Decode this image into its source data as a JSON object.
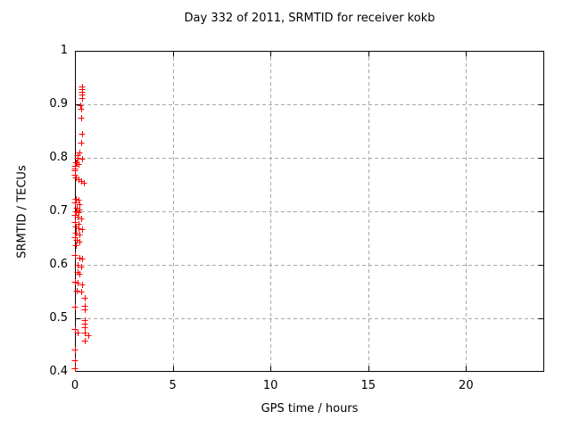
{
  "chart_data": {
    "type": "scatter",
    "title": "Day 332 of 2011, SRMTID for receiver kokb",
    "xlabel": "GPS time / hours",
    "ylabel": "SRMTID / TECUs",
    "xlim": [
      0,
      24
    ],
    "ylim": [
      0.4,
      1.0
    ],
    "xticks": [
      {
        "v": 0,
        "label": "0"
      },
      {
        "v": 5,
        "label": "5"
      },
      {
        "v": 10,
        "label": "10"
      },
      {
        "v": 15,
        "label": "15"
      },
      {
        "v": 20,
        "label": "20"
      }
    ],
    "yticks": [
      {
        "v": 0.4,
        "label": "0.4"
      },
      {
        "v": 0.5,
        "label": "0.5"
      },
      {
        "v": 0.6,
        "label": "0.6"
      },
      {
        "v": 0.7,
        "label": "0.7"
      },
      {
        "v": 0.8,
        "label": "0.8"
      },
      {
        "v": 0.9,
        "label": "0.9"
      },
      {
        "v": 1,
        "label": "1"
      }
    ],
    "grid": true,
    "legend_position": "none",
    "marker": "plus",
    "marker_color": "#ff0000",
    "grid_color": "#a8a8a8",
    "border_color": "#000000",
    "series": [
      {
        "name": "SRMTID",
        "points": [
          [
            0.35,
            0.933
          ],
          [
            0.36,
            0.928
          ],
          [
            0.37,
            0.923
          ],
          [
            0.35,
            0.918
          ],
          [
            0.36,
            0.912
          ],
          [
            0.27,
            0.898
          ],
          [
            0.3,
            0.892
          ],
          [
            0.33,
            0.875
          ],
          [
            0.37,
            0.845
          ],
          [
            0.3,
            0.828
          ],
          [
            0.25,
            0.81
          ],
          [
            0.14,
            0.805
          ],
          [
            0.15,
            0.8
          ],
          [
            0.37,
            0.798
          ],
          [
            0.1,
            0.792
          ],
          [
            0.03,
            0.791
          ],
          [
            0.18,
            0.789
          ],
          [
            0.02,
            0.785
          ],
          [
            0.01,
            0.78
          ],
          [
            0.02,
            0.776
          ],
          [
            0.01,
            0.768
          ],
          [
            0.04,
            0.763
          ],
          [
            0.16,
            0.76
          ],
          [
            0.3,
            0.757
          ],
          [
            0.46,
            0.754
          ],
          [
            0.04,
            0.724
          ],
          [
            0.18,
            0.721
          ],
          [
            0.02,
            0.716
          ],
          [
            0.25,
            0.713
          ],
          [
            0.1,
            0.706
          ],
          [
            0.24,
            0.703
          ],
          [
            0.04,
            0.7
          ],
          [
            0.16,
            0.699
          ],
          [
            0.01,
            0.693
          ],
          [
            0.13,
            0.69
          ],
          [
            0.3,
            0.687
          ],
          [
            0.02,
            0.68
          ],
          [
            0.17,
            0.677
          ],
          [
            0.05,
            0.671
          ],
          [
            0.16,
            0.668
          ],
          [
            0.38,
            0.666
          ],
          [
            0.05,
            0.66
          ],
          [
            0.22,
            0.657
          ],
          [
            0.02,
            0.652
          ],
          [
            0.07,
            0.647
          ],
          [
            0.23,
            0.644
          ],
          [
            0.03,
            0.637
          ],
          [
            0.01,
            0.619
          ],
          [
            0.23,
            0.613
          ],
          [
            0.38,
            0.611
          ],
          [
            0.15,
            0.6
          ],
          [
            0.3,
            0.597
          ],
          [
            0.15,
            0.586
          ],
          [
            0.22,
            0.583
          ],
          [
            0.01,
            0.569
          ],
          [
            0.15,
            0.566
          ],
          [
            0.38,
            0.564
          ],
          [
            0.08,
            0.552
          ],
          [
            0.3,
            0.55
          ],
          [
            0.52,
            0.538
          ],
          [
            0.52,
            0.524
          ],
          [
            0.01,
            0.522
          ],
          [
            0.52,
            0.516
          ],
          [
            0.52,
            0.497
          ],
          [
            0.52,
            0.49
          ],
          [
            0.52,
            0.484
          ],
          [
            0.01,
            0.48
          ],
          [
            0.14,
            0.474
          ],
          [
            0.52,
            0.473
          ],
          [
            0.7,
            0.468
          ],
          [
            0.52,
            0.458
          ],
          [
            0.0,
            0.441
          ],
          [
            0.0,
            0.422
          ],
          [
            0.0,
            0.407
          ]
        ]
      }
    ]
  }
}
